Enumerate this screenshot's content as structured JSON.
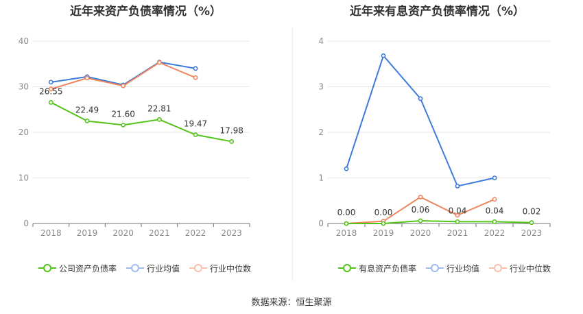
{
  "source_text": "数据来源：恒生聚源",
  "chart_data": [
    {
      "type": "line",
      "title": "近年来资产负债率情况（%）",
      "categories": [
        "2018",
        "2019",
        "2020",
        "2021",
        "2022",
        "2023"
      ],
      "ylim": [
        0,
        40
      ],
      "yticks": [
        0,
        10,
        20,
        30,
        40
      ],
      "grid": true,
      "legend_position": "bottom-left",
      "series": [
        {
          "name": "公司资产负债率",
          "color": "#52c41a",
          "values": [
            26.55,
            22.49,
            21.6,
            22.81,
            19.47,
            17.98
          ],
          "labels": [
            "26.55",
            "22.49",
            "21.60",
            "22.81",
            "19.47",
            "17.98"
          ]
        },
        {
          "name": "行业均值",
          "color": "#3d7bd9",
          "values": [
            31.0,
            32.2,
            30.4,
            35.4,
            34.0,
            null
          ]
        },
        {
          "name": "行业中位数",
          "color": "#f0845d",
          "values": [
            29.5,
            31.9,
            30.2,
            35.3,
            32.0,
            null
          ]
        }
      ]
    },
    {
      "type": "line",
      "title": "近年来有息资产负债率情况（%）",
      "categories": [
        "2018",
        "2019",
        "2020",
        "2021",
        "2022",
        "2023"
      ],
      "ylim": [
        0,
        4
      ],
      "yticks": [
        0,
        1,
        2,
        3,
        4
      ],
      "grid": true,
      "legend_position": "bottom-left",
      "series": [
        {
          "name": "有息资产负债率",
          "color": "#52c41a",
          "values": [
            0.0,
            0.0,
            0.06,
            0.04,
            0.04,
            0.02
          ],
          "labels": [
            "0.00",
            "0.00",
            "0.06",
            "0.04",
            "0.04",
            "0.02"
          ]
        },
        {
          "name": "行业均值",
          "color": "#3d7bd9",
          "values": [
            1.2,
            3.68,
            2.74,
            0.82,
            1.0,
            null
          ]
        },
        {
          "name": "行业中位数",
          "color": "#f0845d",
          "values": [
            0.0,
            0.05,
            0.58,
            0.18,
            0.53,
            null
          ]
        }
      ]
    }
  ]
}
